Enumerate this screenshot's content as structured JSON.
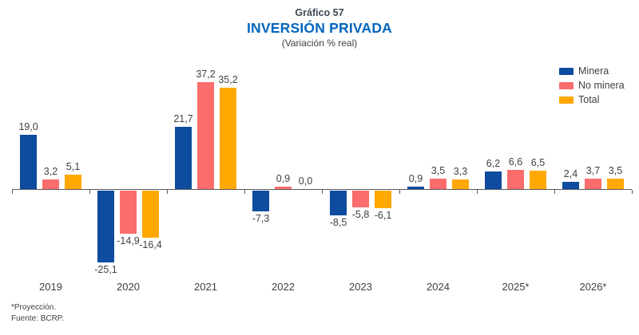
{
  "header": {
    "pretitle": "Gráfico 57",
    "title": "INVERSIÓN PRIVADA",
    "subtitle": "(Variación % real)"
  },
  "legend": {
    "items": [
      {
        "label": "Minera",
        "color": "#0d4c9e"
      },
      {
        "label": "No minera",
        "color": "#fb6c6c"
      },
      {
        "label": "Total",
        "color": "#ffa800"
      }
    ],
    "position": "top-right"
  },
  "footnote": {
    "line1": "*Proyección.",
    "line2": "Fuente: BCRP."
  },
  "colors": {
    "axis": "#595959",
    "text": "#404040",
    "title_blue": "#0065bf",
    "pretitle": "#3d4754"
  },
  "chart_data": {
    "type": "bar",
    "title": "Gráfico 57 — INVERSIÓN PRIVADA",
    "subtitle": "(Variación % real)",
    "categories": [
      "2019",
      "2020",
      "2021",
      "2022",
      "2023",
      "2024",
      "2025*",
      "2026*"
    ],
    "series": [
      {
        "name": "Minera",
        "color": "#0d4c9e",
        "values": [
          19.0,
          -25.1,
          21.7,
          -7.3,
          -8.5,
          0.9,
          6.2,
          2.4
        ]
      },
      {
        "name": "No minera",
        "color": "#fb6c6c",
        "values": [
          3.2,
          -14.9,
          37.2,
          0.9,
          -5.8,
          3.5,
          6.6,
          3.7
        ]
      },
      {
        "name": "Total",
        "color": "#ffa800",
        "values": [
          5.1,
          -16.4,
          35.2,
          0.0,
          -6.1,
          3.3,
          6.5,
          3.5
        ]
      }
    ],
    "value_labels": "shown, one decimal, comma as decimal separator",
    "ylim": [
      -27,
      39
    ],
    "grid": false,
    "legend_position": "top-right",
    "xlabel": "",
    "ylabel": ""
  }
}
